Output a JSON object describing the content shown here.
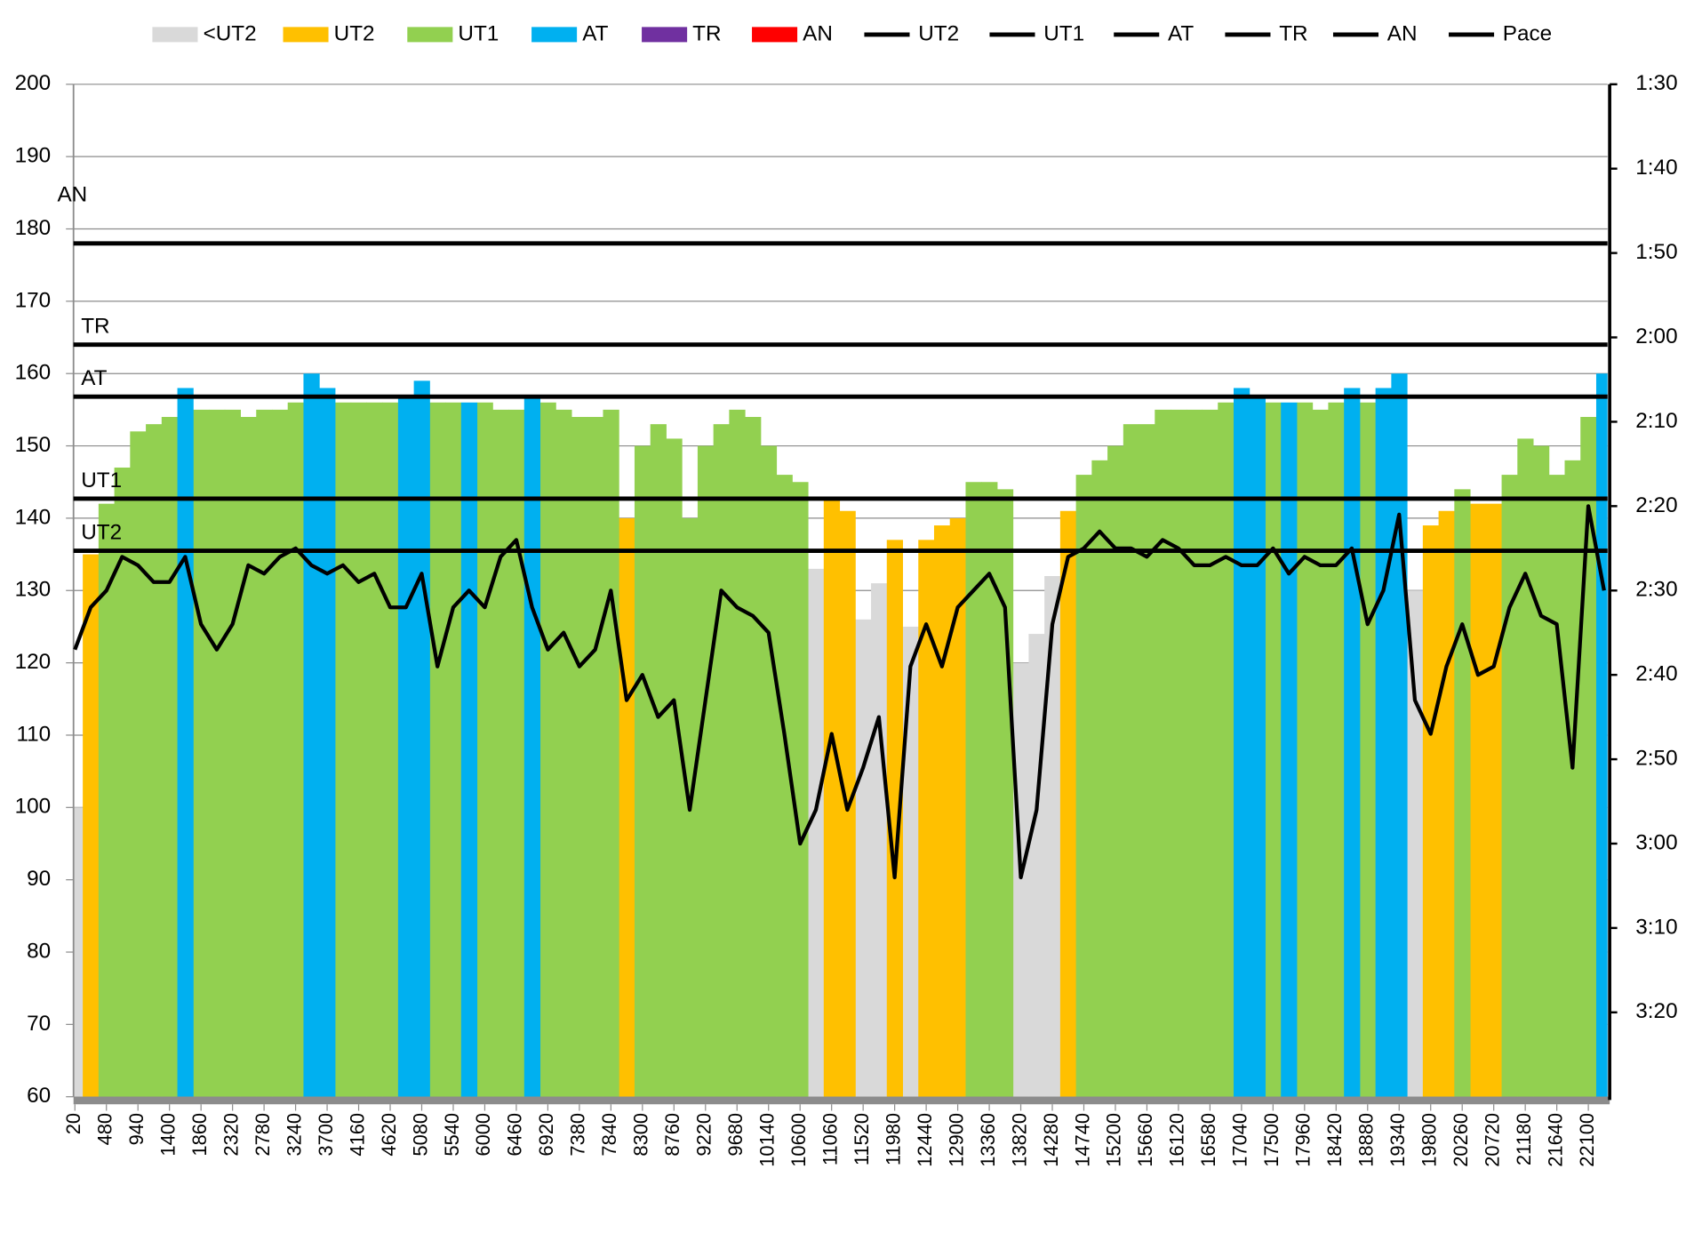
{
  "chart_data": {
    "type": "bar",
    "x": [
      20,
      250,
      480,
      710,
      940,
      1170,
      1400,
      1630,
      1860,
      2090,
      2320,
      2550,
      2780,
      3010,
      3240,
      3470,
      3700,
      3930,
      4160,
      4390,
      4620,
      4850,
      5080,
      5310,
      5540,
      5770,
      6000,
      6230,
      6460,
      6690,
      6920,
      7150,
      7380,
      7610,
      7840,
      8070,
      8300,
      8530,
      8760,
      8990,
      9220,
      9450,
      9680,
      9910,
      10140,
      10370,
      10600,
      10830,
      11060,
      11290,
      11520,
      11750,
      11980,
      12210,
      12440,
      12670,
      12900,
      13130,
      13360,
      13590,
      13820,
      14050,
      14280,
      14510,
      14740,
      14970,
      15200,
      15430,
      15660,
      15890,
      16120,
      16350,
      16580,
      16810,
      17040,
      17270,
      17500,
      17730,
      17960,
      18190,
      18420,
      18650,
      18880,
      19110,
      19340,
      19570,
      19800,
      20030,
      20260,
      20490,
      20720,
      20950,
      21180,
      21410,
      21640,
      21870,
      22100,
      22330
    ],
    "xlim": [
      0,
      22380
    ],
    "xticks": [
      20,
      480,
      940,
      1400,
      1860,
      2320,
      2780,
      3240,
      3700,
      4160,
      4620,
      5080,
      5540,
      6000,
      6460,
      6920,
      7380,
      7840,
      8300,
      8760,
      9220,
      9680,
      10140,
      10600,
      11060,
      11520,
      11980,
      12440,
      12900,
      13360,
      13820,
      14280,
      14740,
      15200,
      15660,
      16120,
      16580,
      17040,
      17500,
      17960,
      18420,
      18880,
      19340,
      19800,
      20260,
      20720,
      21180,
      21640,
      22100
    ],
    "ylim": [
      60,
      200
    ],
    "yticks": [
      60,
      70,
      80,
      90,
      100,
      110,
      120,
      130,
      140,
      150,
      160,
      170,
      180,
      190,
      200
    ],
    "y2lim": [
      90,
      210
    ],
    "y2_inverted": true,
    "y2ticks": [
      {
        "value": 90,
        "label": "1:30"
      },
      {
        "value": 100,
        "label": "1:40"
      },
      {
        "value": 110,
        "label": "1:50"
      },
      {
        "value": 120,
        "label": "2:00"
      },
      {
        "value": 130,
        "label": "2:10"
      },
      {
        "value": 140,
        "label": "2:20"
      },
      {
        "value": 150,
        "label": "2:30"
      },
      {
        "value": 160,
        "label": "2:40"
      },
      {
        "value": 170,
        "label": "2:50"
      },
      {
        "value": 180,
        "label": "3:00"
      },
      {
        "value": 190,
        "label": "3:10"
      },
      {
        "value": 200,
        "label": "3:20"
      }
    ],
    "grid": true,
    "legend": "top",
    "series": [
      {
        "name": "<UT2",
        "color": "#d9d9d9",
        "values": [
          100,
          null,
          null,
          null,
          null,
          null,
          null,
          null,
          null,
          null,
          null,
          null,
          null,
          null,
          null,
          null,
          null,
          null,
          null,
          null,
          null,
          null,
          null,
          null,
          null,
          null,
          null,
          null,
          null,
          null,
          null,
          null,
          null,
          null,
          null,
          null,
          null,
          null,
          null,
          null,
          null,
          null,
          null,
          null,
          null,
          null,
          null,
          133,
          null,
          null,
          126,
          131,
          null,
          125,
          null,
          null,
          null,
          null,
          null,
          null,
          120,
          124,
          132,
          null,
          null,
          null,
          null,
          null,
          null,
          null,
          null,
          null,
          null,
          null,
          null,
          null,
          null,
          null,
          null,
          null,
          null,
          null,
          null,
          null,
          null,
          130,
          null,
          null,
          null,
          null,
          null,
          null,
          null,
          null,
          null,
          null,
          null,
          null
        ]
      },
      {
        "name": "UT2",
        "color": "#ffc000",
        "values": [
          null,
          135,
          null,
          null,
          null,
          null,
          null,
          null,
          null,
          null,
          null,
          null,
          null,
          null,
          null,
          null,
          null,
          null,
          null,
          null,
          null,
          null,
          null,
          null,
          null,
          null,
          null,
          null,
          null,
          null,
          null,
          null,
          null,
          null,
          null,
          140,
          null,
          null,
          null,
          null,
          null,
          null,
          null,
          null,
          null,
          null,
          null,
          null,
          143,
          141,
          null,
          null,
          137,
          null,
          137,
          139,
          140,
          null,
          null,
          null,
          null,
          null,
          null,
          141,
          null,
          null,
          null,
          null,
          null,
          null,
          null,
          null,
          null,
          null,
          null,
          null,
          null,
          null,
          null,
          null,
          null,
          null,
          null,
          null,
          null,
          null,
          139,
          141,
          null,
          142,
          142,
          null,
          null,
          null,
          null,
          null,
          null,
          null
        ]
      },
      {
        "name": "UT1",
        "color": "#92d050",
        "values": [
          null,
          null,
          142,
          147,
          152,
          153,
          154,
          null,
          155,
          155,
          155,
          154,
          155,
          155,
          156,
          null,
          null,
          156,
          156,
          156,
          156,
          null,
          null,
          156,
          156,
          null,
          156,
          155,
          155,
          null,
          156,
          155,
          154,
          154,
          155,
          null,
          150,
          153,
          151,
          140,
          150,
          153,
          155,
          154,
          150,
          146,
          145,
          null,
          null,
          null,
          null,
          null,
          null,
          null,
          null,
          null,
          null,
          145,
          145,
          144,
          null,
          null,
          null,
          null,
          146,
          148,
          150,
          153,
          153,
          155,
          155,
          155,
          155,
          156,
          null,
          null,
          156,
          null,
          156,
          155,
          156,
          null,
          156,
          null,
          null,
          null,
          null,
          null,
          144,
          null,
          null,
          146,
          151,
          150,
          146,
          148,
          154,
          null
        ]
      },
      {
        "name": "AT",
        "color": "#00b0f0",
        "values": [
          null,
          null,
          null,
          null,
          null,
          null,
          null,
          158,
          null,
          null,
          null,
          null,
          null,
          null,
          null,
          160,
          158,
          null,
          null,
          null,
          null,
          157,
          159,
          null,
          null,
          156,
          null,
          null,
          null,
          157,
          null,
          null,
          null,
          null,
          null,
          null,
          null,
          null,
          null,
          null,
          null,
          null,
          null,
          null,
          null,
          null,
          null,
          null,
          null,
          null,
          null,
          null,
          null,
          null,
          null,
          null,
          null,
          null,
          null,
          null,
          null,
          null,
          null,
          null,
          null,
          null,
          null,
          null,
          null,
          null,
          null,
          null,
          null,
          null,
          158,
          157,
          null,
          156,
          null,
          null,
          null,
          158,
          null,
          158,
          160,
          null,
          null,
          null,
          null,
          null,
          null,
          null,
          null,
          null,
          null,
          null,
          null,
          160
        ]
      },
      {
        "name": "TR",
        "color": "#7030a0",
        "values": [
          null,
          null,
          null,
          null,
          null,
          null,
          null,
          null,
          null,
          null,
          null,
          null,
          null,
          null,
          null,
          null,
          null,
          null,
          null,
          null,
          null,
          null,
          null,
          null,
          null,
          null,
          null,
          null,
          null,
          null,
          null,
          null,
          null,
          null,
          null,
          null,
          null,
          null,
          null,
          null,
          null,
          null,
          null,
          null,
          null,
          null,
          null,
          null,
          null,
          null,
          null,
          null,
          null,
          null,
          null,
          null,
          null,
          null,
          null,
          null,
          null,
          null,
          null,
          null,
          null,
          null,
          null,
          null,
          null,
          null,
          null,
          null,
          null,
          null,
          null,
          null,
          null,
          null,
          null,
          null,
          null,
          null,
          null,
          null,
          null,
          null,
          null,
          null,
          null,
          null,
          null,
          null,
          null,
          null,
          null,
          null,
          null,
          null
        ]
      },
      {
        "name": "AN",
        "color": "#ff0000",
        "values": [
          null,
          null,
          null,
          null,
          null,
          null,
          null,
          null,
          null,
          null,
          null,
          null,
          null,
          null,
          null,
          null,
          null,
          null,
          null,
          null,
          null,
          null,
          null,
          null,
          null,
          null,
          null,
          null,
          null,
          null,
          null,
          null,
          null,
          null,
          null,
          null,
          null,
          null,
          null,
          null,
          null,
          null,
          null,
          null,
          null,
          null,
          null,
          null,
          null,
          null,
          null,
          null,
          null,
          null,
          null,
          null,
          null,
          null,
          null,
          null,
          null,
          null,
          null,
          null,
          null,
          null,
          null,
          null,
          null,
          null,
          null,
          null,
          null,
          null,
          null,
          null,
          null,
          null,
          null,
          null,
          null,
          null,
          null,
          null,
          null,
          null,
          null,
          null,
          null,
          null,
          null,
          null,
          null,
          null,
          null,
          null,
          null,
          null
        ]
      },
      {
        "name": "UT2",
        "color": "#000000",
        "type": "hline",
        "value": 135.5
      },
      {
        "name": "UT1",
        "color": "#000000",
        "type": "hline",
        "value": 142.7
      },
      {
        "name": "AT",
        "color": "#000000",
        "type": "hline",
        "value": 156.8
      },
      {
        "name": "TR",
        "color": "#000000",
        "type": "hline",
        "value": 164
      },
      {
        "name": "AN",
        "color": "#000000",
        "type": "hline",
        "value": 178
      },
      {
        "name": "Pace",
        "color": "#000000",
        "type": "line",
        "axis": "y2",
        "values": [
          157,
          152,
          150,
          146,
          147,
          149,
          149,
          146,
          154,
          157,
          154,
          147,
          148,
          146,
          145,
          147,
          148,
          147,
          149,
          148,
          152,
          152,
          148,
          159,
          152,
          150,
          152,
          146,
          144,
          152,
          157,
          155,
          159,
          157,
          150,
          163,
          160,
          165,
          163,
          176,
          163,
          150,
          152,
          153,
          155,
          167,
          180,
          176,
          167,
          176,
          171,
          165,
          184,
          159,
          154,
          159,
          152,
          150,
          148,
          152,
          184,
          176,
          154,
          146,
          145,
          143,
          145,
          145,
          146,
          144,
          145,
          147,
          147,
          146,
          147,
          147,
          145,
          148,
          146,
          147,
          147,
          145,
          154,
          150,
          141,
          163,
          167,
          159,
          154,
          160,
          159,
          152,
          148,
          153,
          154,
          171,
          140,
          150
        ]
      }
    ]
  }
}
